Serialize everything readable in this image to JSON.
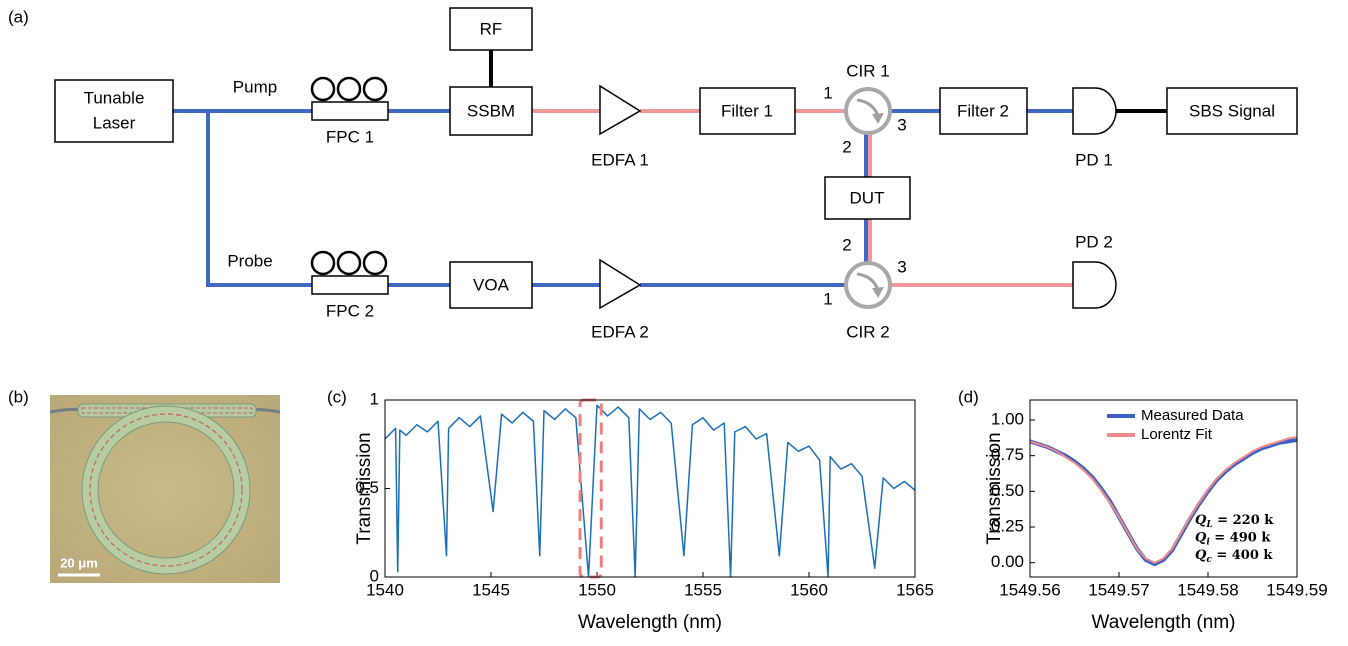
{
  "figure": {
    "panel_labels": [
      "(a)",
      "(b)",
      "(c)",
      "(d)"
    ]
  },
  "diagram": {
    "laser": [
      "Tunable",
      "Laser"
    ],
    "rf": "RF",
    "ssbm": "SSBM",
    "filter1": "Filter 1",
    "filter2": "Filter 2",
    "sbs": "SBS Signal",
    "dut": "DUT",
    "voa": "VOA",
    "pump": "Pump",
    "probe": "Probe",
    "fpc1": "FPC 1",
    "fpc2": "FPC 2",
    "edfa1": "EDFA 1",
    "edfa2": "EDFA 2",
    "cir1": "CIR 1",
    "cir2": "CIR 2",
    "pd1": "PD 1",
    "pd2": "PD 2",
    "cir1_ports": [
      "1",
      "2",
      "3"
    ],
    "cir2_ports": [
      "1",
      "2",
      "3"
    ]
  },
  "micrograph": {
    "scale_bar": "20 μm"
  },
  "chart_data": [
    {
      "type": "line",
      "xlabel": "Wavelength (nm)",
      "ylabel": "Transmission",
      "x": [
        1540,
        1540.5,
        1540.6,
        1540.7,
        1541,
        1541.5,
        1542,
        1542.5,
        1542.9,
        1543,
        1543.5,
        1544,
        1544.5,
        1545.1,
        1545.5,
        1546,
        1546.5,
        1547,
        1547.3,
        1547.5,
        1548,
        1548.5,
        1549,
        1549.6,
        1550,
        1550.5,
        1551,
        1551.5,
        1551.8,
        1552,
        1552.5,
        1553,
        1553.5,
        1554.1,
        1554.5,
        1555,
        1555.5,
        1556,
        1556.3,
        1556.5,
        1557,
        1557.5,
        1558,
        1558.6,
        1559,
        1559.5,
        1560,
        1560.5,
        1560.9,
        1561,
        1561.5,
        1562,
        1562.5,
        1563.1,
        1563.5,
        1564,
        1564.5,
        1565
      ],
      "series": [
        {
          "color": "#1b6fb6",
          "values": [
            0.78,
            0.84,
            0.03,
            0.83,
            0.8,
            0.86,
            0.82,
            0.88,
            0.12,
            0.84,
            0.9,
            0.85,
            0.91,
            0.37,
            0.92,
            0.87,
            0.93,
            0.88,
            0.12,
            0.94,
            0.89,
            0.95,
            0.9,
            0.0,
            0.97,
            0.91,
            0.96,
            0.9,
            0.0,
            0.95,
            0.89,
            0.93,
            0.87,
            0.12,
            0.86,
            0.9,
            0.83,
            0.87,
            0.0,
            0.82,
            0.85,
            0.78,
            0.81,
            0.12,
            0.76,
            0.71,
            0.74,
            0.66,
            0.0,
            0.68,
            0.61,
            0.64,
            0.57,
            0.05,
            0.56,
            0.5,
            0.54,
            0.49
          ]
        }
      ],
      "xlim": [
        1540,
        1565
      ],
      "ylim": [
        0,
        1
      ],
      "xticks": [
        1540,
        1545,
        1550,
        1555,
        1560,
        1565
      ],
      "yticks": [
        0,
        0.5,
        1
      ],
      "highlight": {
        "x": [
          1549.2,
          1550.2
        ],
        "color": "#f08080"
      }
    },
    {
      "type": "line",
      "xlabel": "Wavelength (nm)",
      "ylabel": "Transmission",
      "x": [
        1549.56,
        1549.561,
        1549.562,
        1549.563,
        1549.564,
        1549.565,
        1549.566,
        1549.567,
        1549.568,
        1549.569,
        1549.57,
        1549.571,
        1549.572,
        1549.573,
        1549.574,
        1549.575,
        1549.576,
        1549.577,
        1549.578,
        1549.579,
        1549.58,
        1549.581,
        1549.582,
        1549.583,
        1549.584,
        1549.585,
        1549.586,
        1549.587,
        1549.588,
        1549.589,
        1549.59
      ],
      "series": [
        {
          "name": "Measured Data",
          "color": "#3d62c6",
          "width": 4,
          "values": [
            0.85,
            0.83,
            0.81,
            0.78,
            0.75,
            0.71,
            0.66,
            0.6,
            0.52,
            0.43,
            0.32,
            0.21,
            0.1,
            0.02,
            -0.01,
            0.02,
            0.09,
            0.2,
            0.31,
            0.41,
            0.5,
            0.58,
            0.64,
            0.69,
            0.73,
            0.77,
            0.8,
            0.82,
            0.84,
            0.85,
            0.86
          ]
        },
        {
          "name": "Lorentz Fit",
          "color": "#f08a8a",
          "width": 2,
          "values": [
            0.85,
            0.83,
            0.81,
            0.78,
            0.74,
            0.7,
            0.65,
            0.59,
            0.51,
            0.42,
            0.32,
            0.21,
            0.1,
            0.03,
            0.0,
            0.03,
            0.1,
            0.21,
            0.32,
            0.42,
            0.51,
            0.59,
            0.65,
            0.7,
            0.74,
            0.78,
            0.81,
            0.83,
            0.85,
            0.87,
            0.88
          ]
        }
      ],
      "xlim": [
        1549.56,
        1549.59
      ],
      "ylim": [
        -0.1,
        1.14
      ],
      "xticks": [
        1549.56,
        1549.57,
        1549.58,
        1549.59
      ],
      "yticks": [
        {
          "value": 0,
          "label": "0.00"
        },
        {
          "value": 0.25,
          "label": "0.25"
        },
        {
          "value": 0.5,
          "label": "0.50"
        },
        {
          "value": 0.75,
          "label": "0.75"
        },
        {
          "value": 1,
          "label": "1.00"
        }
      ],
      "legend": "upper right",
      "annotations": [
        {
          "symbol": "Q",
          "subscript": "L",
          "text": " = 220 k"
        },
        {
          "symbol": "Q",
          "subscript": "i",
          "text": " = 490 k"
        },
        {
          "symbol": "Q",
          "subscript": "c",
          "text": " = 400 k"
        }
      ]
    }
  ]
}
